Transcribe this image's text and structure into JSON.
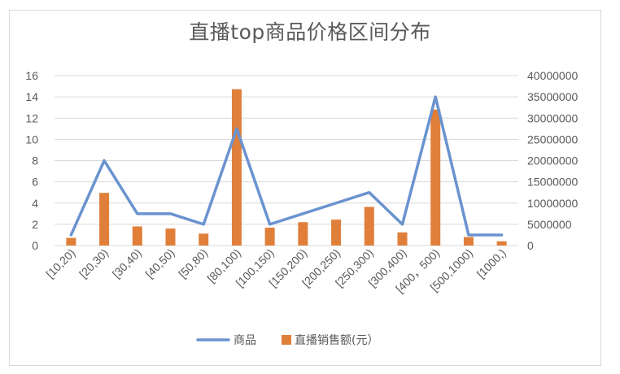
{
  "chart_data": {
    "type": "bar+line",
    "title": "直播top商品价格区间分布",
    "categories": [
      "[10,20)",
      "[20,30)",
      "[30,40)",
      "[40,50)",
      "[50,80)",
      "[80,100)",
      "[100,150)",
      "[150,200)",
      "[200,250)",
      "[250,300)",
      "[300,400)",
      "[400，500)",
      "[500,1000)",
      "[1000,)"
    ],
    "series": [
      {
        "name": "商品",
        "type": "line",
        "axis": "left",
        "color": "#6a93cf",
        "values": [
          1,
          8,
          3,
          3,
          2,
          11,
          2,
          3,
          4,
          5,
          2,
          14,
          1,
          1
        ]
      },
      {
        "name": "直播销售额(元）",
        "type": "bar",
        "axis": "right",
        "color": "#e07f3a",
        "values": [
          1800000,
          12400000,
          4500000,
          4000000,
          2800000,
          36800000,
          4200000,
          5500000,
          6100000,
          9100000,
          3100000,
          32000000,
          2000000,
          1000000
        ]
      }
    ],
    "left_axis": {
      "ylim": [
        0,
        16
      ],
      "ticks": [
        "0",
        "2",
        "4",
        "6",
        "8",
        "10",
        "12",
        "14",
        "16"
      ]
    },
    "right_axis": {
      "ylim": [
        0,
        40000000
      ],
      "ticks": [
        "0",
        "5000000",
        "10000000",
        "15000000",
        "20000000",
        "25000000",
        "30000000",
        "35000000",
        "40000000"
      ]
    },
    "grid": true,
    "legend_position": "bottom"
  }
}
